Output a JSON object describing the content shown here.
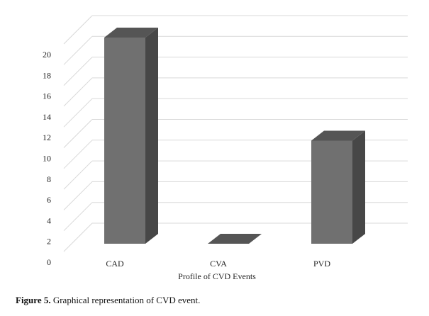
{
  "chart_data": {
    "type": "bar",
    "style": "3d",
    "categories": [
      "CAD",
      "CVA",
      "PVD"
    ],
    "values": [
      20,
      0,
      10
    ],
    "xlabel": "Profile of CVD Events",
    "ylabel": "",
    "ylim": [
      0,
      20
    ],
    "y_ticks": [
      0,
      2,
      4,
      6,
      8,
      10,
      12,
      14,
      16,
      18,
      20
    ],
    "grid": true,
    "legend": "none",
    "colors": {
      "bar_front": "#707070",
      "bar_side": "#474747",
      "bar_top": "#555555",
      "grid": "#d9d9d9"
    }
  },
  "caption": {
    "label": "Figure 5.",
    "text": " Graphical representation of CVD event."
  }
}
